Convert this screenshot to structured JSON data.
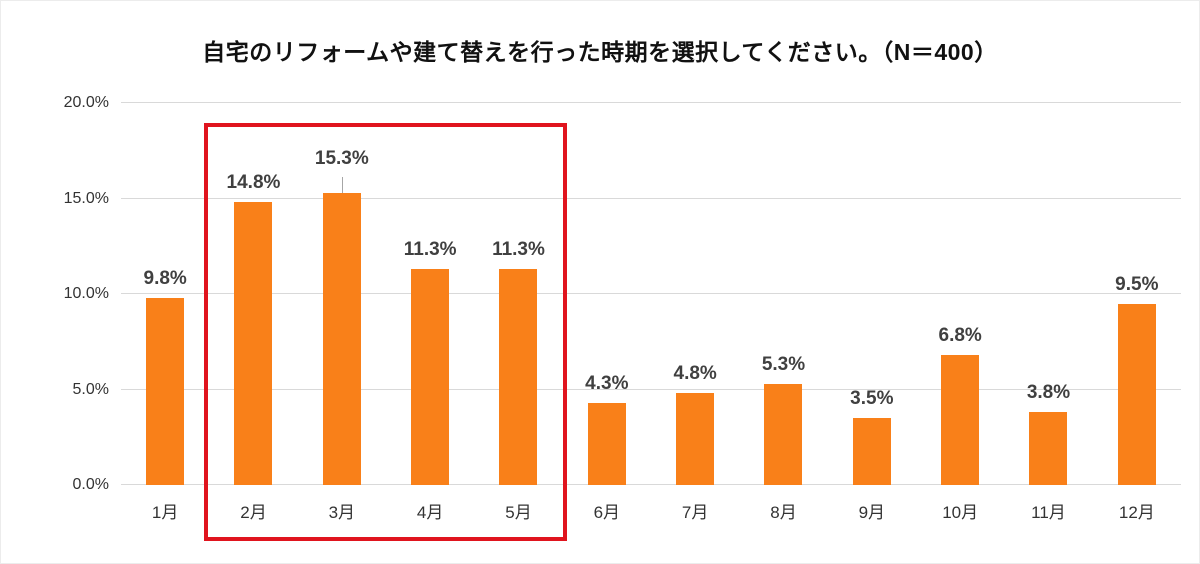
{
  "chart_data": {
    "type": "bar",
    "title": "自宅のリフォームや建て替えを行った時期を選択してください。（N＝400）",
    "categories": [
      "1月",
      "2月",
      "3月",
      "4月",
      "5月",
      "6月",
      "7月",
      "8月",
      "9月",
      "10月",
      "11月",
      "12月"
    ],
    "values": [
      9.8,
      14.8,
      15.3,
      11.3,
      11.3,
      4.3,
      4.8,
      5.3,
      3.5,
      6.8,
      3.8,
      9.5
    ],
    "value_labels": [
      "9.8%",
      "14.8%",
      "15.3%",
      "11.3%",
      "11.3%",
      "4.3%",
      "4.8%",
      "5.3%",
      "3.5%",
      "6.8%",
      "3.8%",
      "9.5%"
    ],
    "ytick_labels": [
      "0.0%",
      "5.0%",
      "10.0%",
      "15.0%",
      "20.0%"
    ],
    "ylim": [
      0,
      20
    ],
    "grid": true,
    "legend": "none",
    "bar_color": "#f98019",
    "value_label_color": "#404040",
    "axis_label_color": "#333333",
    "gridline_color": "#d9d9d9",
    "label_leader_index": 2,
    "highlight": {
      "start_index": 1,
      "end_index": 4,
      "border_color": "#e0141e"
    }
  }
}
